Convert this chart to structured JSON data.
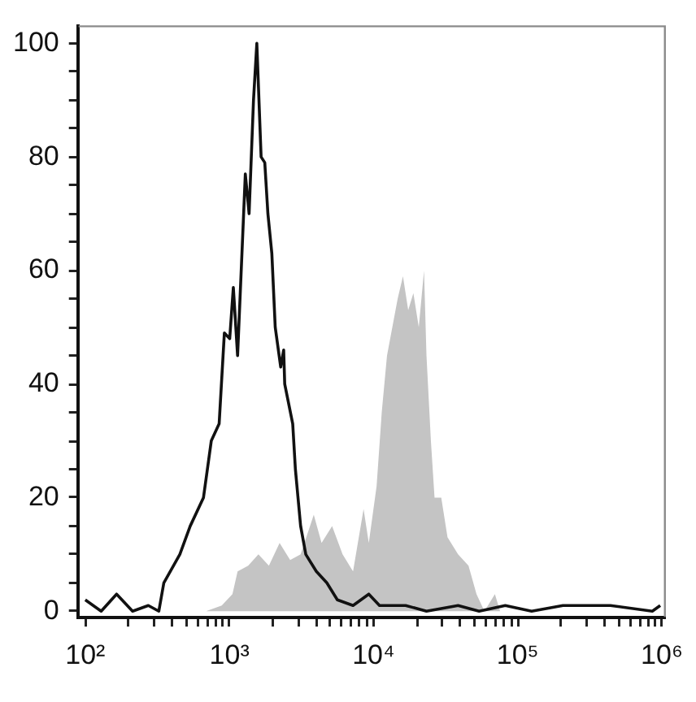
{
  "chart_data": {
    "type": "line",
    "log": "x",
    "grid": false,
    "legend": false,
    "marker": "none",
    "line_style": "solid",
    "xlim": [
      90,
      1050000
    ],
    "ylim": [
      -1,
      103
    ],
    "xticks": [
      {
        "value": 100,
        "label": "10²"
      },
      {
        "value": 200,
        "label": null
      },
      {
        "value": 300,
        "label": null
      },
      {
        "value": 400,
        "label": null
      },
      {
        "value": 500,
        "label": null
      },
      {
        "value": 600,
        "label": null
      },
      {
        "value": 700,
        "label": null
      },
      {
        "value": 800,
        "label": null
      },
      {
        "value": 900,
        "label": null
      },
      {
        "value": 1000,
        "label": "10³"
      },
      {
        "value": 2000,
        "label": null
      },
      {
        "value": 3000,
        "label": null
      },
      {
        "value": 4000,
        "label": null
      },
      {
        "value": 5000,
        "label": null
      },
      {
        "value": 6000,
        "label": null
      },
      {
        "value": 7000,
        "label": null
      },
      {
        "value": 8000,
        "label": null
      },
      {
        "value": 9000,
        "label": null
      },
      {
        "value": 10000,
        "label": "10⁴"
      },
      {
        "value": 20000,
        "label": null
      },
      {
        "value": 30000,
        "label": null
      },
      {
        "value": 40000,
        "label": null
      },
      {
        "value": 50000,
        "label": null
      },
      {
        "value": 60000,
        "label": null
      },
      {
        "value": 70000,
        "label": null
      },
      {
        "value": 80000,
        "label": null
      },
      {
        "value": 90000,
        "label": null
      },
      {
        "value": 100000,
        "label": "10⁵"
      },
      {
        "value": 200000,
        "label": null
      },
      {
        "value": 300000,
        "label": null
      },
      {
        "value": 400000,
        "label": null
      },
      {
        "value": 500000,
        "label": null
      },
      {
        "value": 600000,
        "label": null
      },
      {
        "value": 700000,
        "label": null
      },
      {
        "value": 800000,
        "label": null
      },
      {
        "value": 900000,
        "label": null
      },
      {
        "value": 1000000,
        "label": "10⁶"
      }
    ],
    "yticks": [
      0,
      {
        "value": 5,
        "label": null
      },
      {
        "value": 10,
        "label": null
      },
      {
        "value": 15,
        "label": null
      },
      20,
      {
        "value": 25,
        "label": null
      },
      {
        "value": 30,
        "label": null
      },
      {
        "value": 35,
        "label": null
      },
      40,
      {
        "value": 45,
        "label": null
      },
      {
        "value": 50,
        "label": null
      },
      {
        "value": 55,
        "label": null
      },
      60,
      {
        "value": 65,
        "label": null
      },
      {
        "value": 70,
        "label": null
      },
      {
        "value": 75,
        "label": null
      },
      80,
      {
        "value": 85,
        "label": null
      },
      {
        "value": 90,
        "label": null
      },
      {
        "value": 95,
        "label": null
      },
      100
    ],
    "series": [
      {
        "type": "area",
        "color": "#c4c4c4",
        "x": [
          690,
          885,
          1050,
          1140,
          1350,
          1590,
          1880,
          2230,
          2640,
          3120,
          3850,
          4360,
          5160,
          6100,
          7210,
          8530,
          9270,
          10500,
          11400,
          12400,
          14700,
          16000,
          17400,
          18900,
          20600,
          22400,
          23300,
          25000,
          26500,
          29500,
          32600,
          38600,
          45600,
          51800,
          58800,
          69500,
          75500
        ],
        "values": [
          0,
          1,
          3,
          7,
          8,
          10,
          8,
          12,
          9,
          10,
          17,
          12,
          15,
          10,
          7,
          18,
          12,
          22,
          35,
          45,
          55,
          59,
          53,
          56,
          50,
          60,
          45,
          30,
          20,
          20,
          13,
          10,
          8,
          3,
          0,
          3,
          0
        ]
      },
      {
        "type": "line",
        "color": "#111111",
        "x": [
          100,
          129,
          165,
          213,
          274,
          324,
          351,
          453,
          535,
          661,
          749,
          849,
          923,
          1005,
          1065,
          1140,
          1290,
          1370,
          1470,
          1550,
          1660,
          1760,
          1850,
          1970,
          2080,
          2270,
          2380,
          2420,
          2750,
          2870,
          3120,
          3390,
          4010,
          4740,
          5610,
          7210,
          9270,
          11000,
          16700,
          23300,
          38600,
          54000,
          82000,
          125000,
          206000,
          440000,
          859000,
          975000
        ],
        "values": [
          2,
          0,
          3,
          0,
          1,
          0,
          5,
          10,
          15,
          20,
          30,
          33,
          49,
          48,
          57,
          45,
          77,
          70,
          90,
          100,
          80,
          79,
          70,
          63,
          50,
          43,
          46,
          40,
          33,
          25,
          15,
          10,
          7,
          5,
          2,
          1,
          3,
          1,
          1,
          0,
          1,
          0,
          1,
          0,
          1,
          1,
          0,
          1
        ]
      }
    ]
  }
}
